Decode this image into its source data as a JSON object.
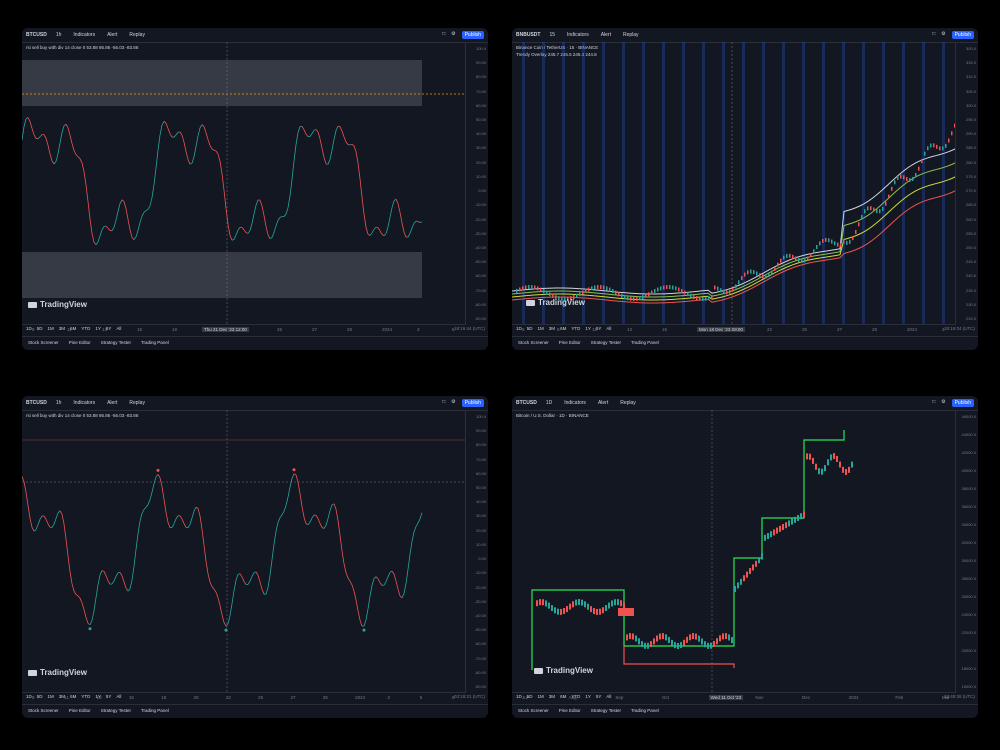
{
  "panels": [
    {
      "symbol": "BTCUSD",
      "interval": "1h",
      "indicators_label": "Indicators",
      "alert_label": "Alert",
      "replay_label": "Replay",
      "legend": "rsi sell buy with div 14 close  0  53.88  86.86  -56.03  -83.86",
      "y_labels": [
        "100.0",
        "90.00",
        "80.00",
        "70.00",
        "60.00",
        "50.00",
        "40.00",
        "30.00",
        "20.00",
        "10.00",
        "0.00",
        "-10.00",
        "-20.00",
        "-30.00",
        "-40.00",
        "-50.00",
        "-60.00",
        "-70.00",
        "-80.00",
        "-90.00"
      ],
      "x_labels": [
        "8",
        "11",
        "13",
        "15",
        "18",
        "20",
        "22",
        "25",
        "27",
        "29",
        "2024",
        "3",
        "5"
      ],
      "crosshair_date": "Thu 21 Dec '23  12:00",
      "ranges": [
        "1D",
        "5D",
        "1M",
        "3M",
        "6M",
        "YTD",
        "1Y",
        "5Y",
        "All"
      ],
      "clock": "18:16:44 (UTC)",
      "bottom_tabs": [
        "Stock Screener",
        "Pine Editor",
        "Strategy Tester",
        "Trading Panel"
      ]
    },
    {
      "symbol": "BNBUSDT",
      "interval": "15",
      "indicators_label": "Indicators",
      "alert_label": "Alert",
      "replay_label": "Replay",
      "legend": "Binance Coin / TetherUS · 15 · BINANCE",
      "legend2": "Trendy Overlay  245.7  245.5  245.4  244.8",
      "y_labels": [
        "320.0",
        "315.0",
        "310.0",
        "305.0",
        "300.0",
        "295.0",
        "290.0",
        "285.0",
        "280.0",
        "275.0",
        "270.0",
        "265.0",
        "260.0",
        "255.0",
        "250.0",
        "245.0",
        "240.0",
        "235.0",
        "230.0",
        "225.0"
      ],
      "x_labels": [
        "6",
        "8",
        "11",
        "13",
        "15",
        "Mon 18 Dec '23  09:00",
        "20",
        "22",
        "25",
        "27",
        "29",
        "2024",
        "3"
      ],
      "crosshair_date": "Mon 18 Dec '23  09:00",
      "ranges": [
        "1D",
        "5D",
        "1M",
        "3M",
        "6M",
        "YTD",
        "1Y",
        "5Y",
        "All"
      ],
      "clock": "18:16:04 (UTC)",
      "bottom_tabs": [
        "Stock Screener",
        "Pine Editor",
        "Strategy Tester",
        "Trading Panel"
      ]
    },
    {
      "symbol": "BTCUSD",
      "interval": "1h",
      "indicators_label": "Indicators",
      "alert_label": "Alert",
      "replay_label": "Replay",
      "legend": "rsi sell buy with div 14 close  0  53.88  86.86  -56.03  -83.86",
      "y_labels": [
        "100.0",
        "90.00",
        "80.00",
        "70.00",
        "60.00",
        "50.00",
        "40.00",
        "30.00",
        "20.00",
        "10.00",
        "0.00",
        "-10.00",
        "-20.00",
        "-30.00",
        "-40.00",
        "-50.00",
        "-60.00",
        "-70.00",
        "-80.00",
        "-90.00"
      ],
      "x_labels": [
        "8",
        "11",
        "13",
        "15",
        "18",
        "20",
        "22",
        "25",
        "27",
        "29",
        "2024",
        "3",
        "5",
        "8"
      ],
      "crosshair_date": "",
      "ranges": [
        "1D",
        "5D",
        "1M",
        "3M",
        "6M",
        "YTD",
        "1Y",
        "5Y",
        "All"
      ],
      "clock": "03:19:21 (UTC)",
      "bottom_tabs": [
        "Stock Screener",
        "Pine Editor",
        "Strategy Tester",
        "Trading Panel"
      ]
    },
    {
      "symbol": "BTCUSD",
      "interval": "1D",
      "indicators_label": "Indicators",
      "alert_label": "Alert",
      "replay_label": "Replay",
      "legend": "Bitcoin / U.S. Dollar · 1D · BINANCE",
      "y_labels": [
        "46000.0",
        "44000.0",
        "42000.0",
        "40000.0",
        "38000.0",
        "36000.0",
        "34000.0",
        "32000.0",
        "30000.0",
        "28000.0",
        "26000.0",
        "24000.0",
        "22000.0",
        "20000.0",
        "18000.0",
        "16000.0"
      ],
      "x_labels": [
        "Jul",
        "Aug",
        "Sep",
        "Oct",
        "Wed 11 Oct '23",
        "Nov",
        "Dec",
        "2024",
        "Feb",
        "Mar"
      ],
      "crosshair_date": "Wed 11 Oct '23",
      "ranges": [
        "1D",
        "5D",
        "1M",
        "3M",
        "6M",
        "YTD",
        "1Y",
        "5Y",
        "All"
      ],
      "clock": "23:49:28 (UTC)",
      "bottom_tabs": [
        "Stock Screener",
        "Pine Editor",
        "Strategy Tester",
        "Trading Panel"
      ]
    }
  ],
  "brand": "TradingView",
  "publish_label": "Publish",
  "colors": {
    "bg": "#131722",
    "green": "#26a69a",
    "red": "#ef5350",
    "band": "#787b86"
  }
}
